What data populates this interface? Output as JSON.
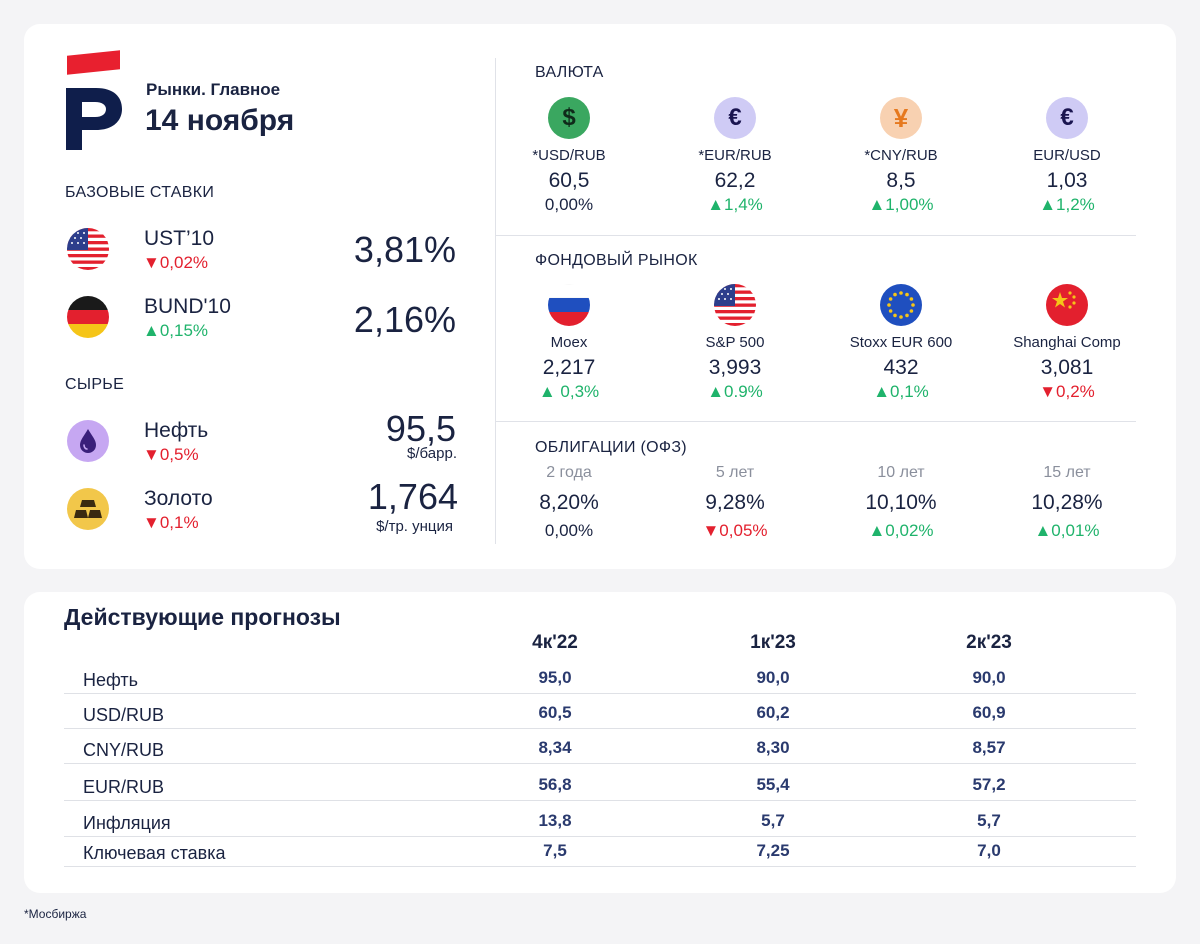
{
  "brand": {
    "subtitle": "Рынки. Главное",
    "date": "14 ноября",
    "accent_color": "#e8202f",
    "navy_color": "#0f1e4b"
  },
  "base_rates": {
    "title": "БАЗОВЫЕ СТАВКИ",
    "items": [
      {
        "icon": "us-flag-icon",
        "name": "UST’10",
        "change": "▼0,02%",
        "direction": "down",
        "value": "3,81%"
      },
      {
        "icon": "germany-flag-icon",
        "name": "BUND'10",
        "change": "▲0,15%",
        "direction": "up",
        "value": "2,16%"
      }
    ]
  },
  "commodities": {
    "title": "СЫРЬЕ",
    "items": [
      {
        "icon": "oil-drop-icon",
        "name": "Нефть",
        "change": "▼0,5%",
        "direction": "down",
        "value": "95,5",
        "unit": "$/барр."
      },
      {
        "icon": "gold-bars-icon",
        "name": "Золото",
        "change": "▼0,1%",
        "direction": "down",
        "value": "1,764",
        "unit": "$/тр. унция"
      }
    ]
  },
  "currency": {
    "title": "ВАЛЮТА",
    "items": [
      {
        "icon": "dollar-icon",
        "label": "*USD/RUB",
        "value": "60,5",
        "change": "0,00%",
        "direction": "neutral"
      },
      {
        "icon": "euro-icon",
        "label": "*EUR/RUB",
        "value": "62,2",
        "change": "▲1,4%",
        "direction": "up"
      },
      {
        "icon": "yuan-icon",
        "label": "*CNY/RUB",
        "value": "8,5",
        "change": "▲1,00%",
        "direction": "up"
      },
      {
        "icon": "euro-icon",
        "label": "EUR/USD",
        "value": "1,03",
        "change": "▲1,2%",
        "direction": "up"
      }
    ]
  },
  "stocks": {
    "title": "ФОНДОВЫЙ РЫНОК",
    "items": [
      {
        "icon": "russia-flag-icon",
        "label": "Moex",
        "value": "2,217",
        "change": "▲ 0,3%",
        "direction": "up"
      },
      {
        "icon": "us-flag-icon",
        "label": "S&P 500",
        "value": "3,993",
        "change": "▲0.9%",
        "direction": "up"
      },
      {
        "icon": "eu-flag-icon",
        "label": "Stoxx EUR 600",
        "value": "432",
        "change": "▲0,1%",
        "direction": "up"
      },
      {
        "icon": "china-flag-icon",
        "label": "Shanghai Comp",
        "value": "3,081",
        "change": "▼0,2%",
        "direction": "down"
      }
    ]
  },
  "bonds": {
    "title": "ОБЛИГАЦИИ (ОФЗ)",
    "items": [
      {
        "term": "2 года",
        "value": "8,20%",
        "change": "0,00%",
        "direction": "neutral"
      },
      {
        "term": "5 лет",
        "value": "9,28%",
        "change": "▼0,05%",
        "direction": "down"
      },
      {
        "term": "10 лет",
        "value": "10,10%",
        "change": "▲0,02%",
        "direction": "up"
      },
      {
        "term": "15 лет",
        "value": "10,28%",
        "change": "▲0,01%",
        "direction": "up"
      }
    ]
  },
  "forecasts": {
    "title": "Действующие прогнозы",
    "columns": [
      "4к'22",
      "1к'23",
      "2к'23"
    ],
    "rows": [
      {
        "name": "Нефть",
        "values": [
          "95,0",
          "90,0",
          "90,0"
        ]
      },
      {
        "name": "USD/RUB",
        "values": [
          "60,5",
          "60,2",
          "60,9"
        ]
      },
      {
        "name": "CNY/RUB",
        "values": [
          "8,34",
          "8,30",
          "8,57"
        ]
      },
      {
        "name": "EUR/RUB",
        "values": [
          "56,8",
          "55,4",
          "57,2"
        ]
      },
      {
        "name": "Инфляция",
        "values": [
          "13,8",
          "5,7",
          "5,7"
        ]
      },
      {
        "name": "Ключевая ставка",
        "values": [
          "7,5",
          "7,25",
          "7,0"
        ]
      }
    ]
  },
  "footnote": "*Мосбиржа",
  "colors": {
    "up": "#1fb36b",
    "down": "#e3202e",
    "text": "#1a2341"
  }
}
